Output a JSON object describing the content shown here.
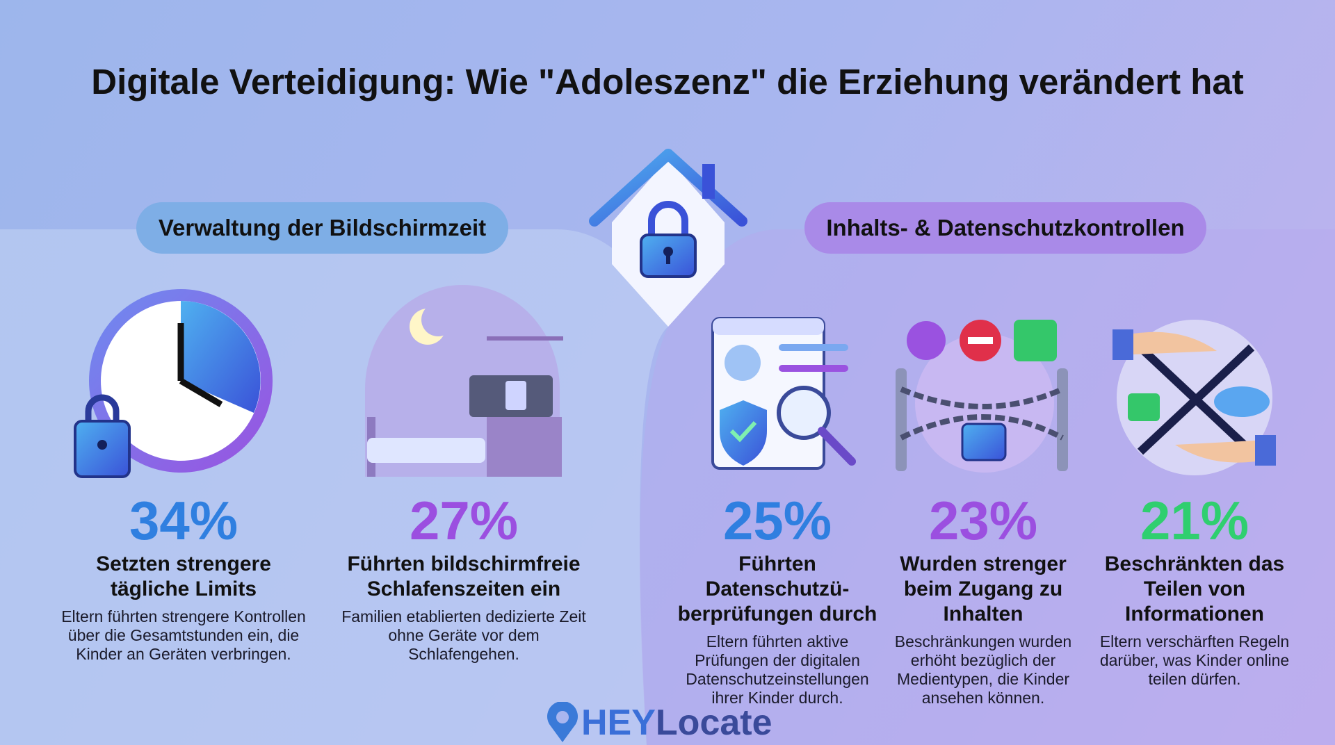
{
  "title": "Digitale Verteidigung: Wie \"Adoleszenz\" die Erziehung verändert hat",
  "sections": [
    {
      "heading": "Verwaltung der Bildschirmzeit",
      "items": [
        {
          "stat": "34%",
          "title": "Setzten strengere tägliche Limits",
          "description": "Eltern führten strengere Kontrollen über die Gesamtstunden ein, die Kinder an Geräten verbringen."
        },
        {
          "stat": "27%",
          "title": "Führten bildschirmfreie Schlafenszeiten ein",
          "description": "Familien etablierten dedizierte Zeit ohne Geräte vor dem Schlafengehen."
        }
      ]
    },
    {
      "heading": "Inhalts- & Datenschutzkontrollen",
      "items": [
        {
          "stat": "25%",
          "title": "Führten Datenschutzü-berprüfungen durch",
          "description": "Eltern führten aktive Prüfungen der digitalen Datenschutzeinstellungen ihrer Kinder durch."
        },
        {
          "stat": "23%",
          "title": "Wurden strenger beim Zugang zu Inhalten",
          "description": "Beschränkungen wurden erhöht bezüglich der Medientypen, die Kinder ansehen können."
        },
        {
          "stat": "21%",
          "title": "Beschränkten das Teilen von Informationen",
          "description": "Eltern verschärften Regeln darüber, was Kinder online teilen dürfen."
        }
      ]
    }
  ],
  "logo": {
    "brand_bold": "HEY",
    "brand": "Locate"
  }
}
